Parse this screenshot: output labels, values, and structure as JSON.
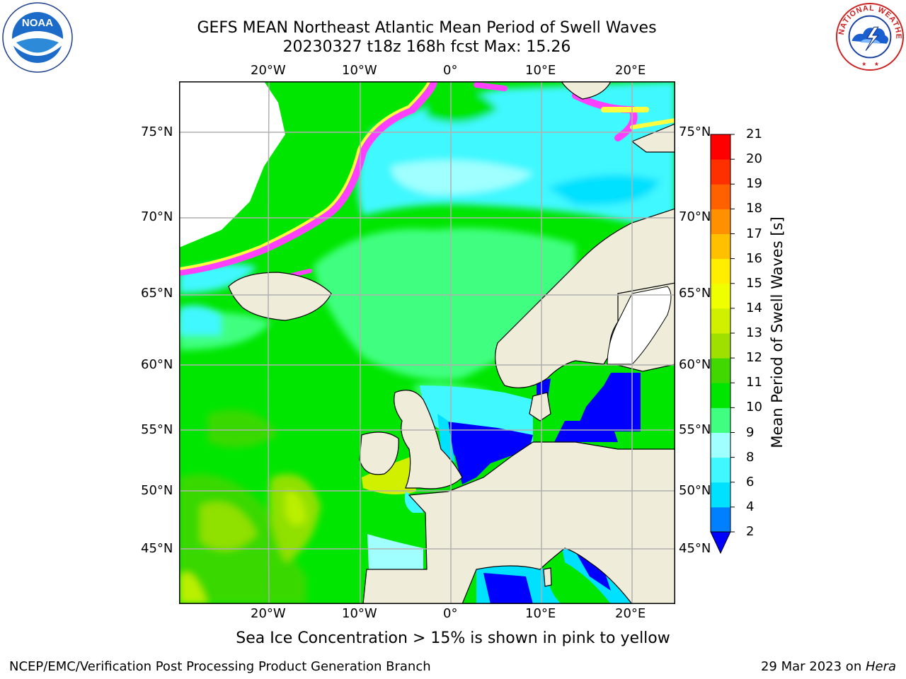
{
  "title_line1": "GEFS MEAN Northeast Atlantic Mean Period of Swell Waves",
  "title_line2": "20230327 t18z 168h fcst   Max: 15.26",
  "lon_labels": [
    "20°W",
    "10°W",
    "0°",
    "10°E",
    "20°E"
  ],
  "lat_labels": [
    "75°N",
    "70°N",
    "65°N",
    "60°N",
    "55°N",
    "50°N",
    "45°N"
  ],
  "colorbar": {
    "title": "Mean Period of Swell Waves [s]",
    "levels": [
      2,
      4,
      6,
      8,
      9,
      10,
      11,
      12,
      13,
      14,
      15,
      16,
      17,
      18,
      19,
      20,
      21
    ],
    "level_labels": [
      "2",
      "4",
      "6",
      "8",
      "9",
      "10",
      "11",
      "12",
      "13",
      "14",
      "15",
      "16",
      "17",
      "18",
      "19",
      "20",
      "21"
    ],
    "colors": [
      "#0000ff",
      "#0080ff",
      "#00e0ff",
      "#40f8ff",
      "#a0ffff",
      "#40ff80",
      "#00e600",
      "#40d800",
      "#a0e000",
      "#d0f000",
      "#f0ff00",
      "#ffee00",
      "#ffc000",
      "#ff9000",
      "#ff6000",
      "#ff3000",
      "#ff0000"
    ],
    "extend": "min"
  },
  "ice_colors": [
    "#ff40ff",
    "#ffb0c0",
    "#ffff40"
  ],
  "land_color": "#efedda",
  "note": "Sea Ice Concentration > 15% is shown in pink to yellow",
  "footer_left": "NCEP/EMC/Verification Post Processing Product Generation Branch",
  "footer_date": "29 Mar 2023 on ",
  "footer_machine": "Hera",
  "logos": {
    "left": "NOAA",
    "right": "NATIONAL WEATHER SERVICE"
  }
}
